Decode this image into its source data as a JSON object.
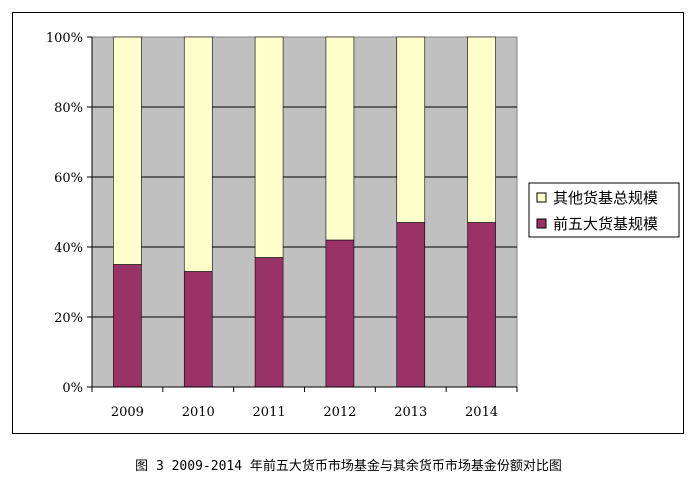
{
  "caption": "图 3  2009-2014 年前五大货币市场基金与其余货币市场基金份额对比图",
  "chart_data": {
    "type": "bar",
    "stacked": true,
    "percent_stacked": true,
    "categories": [
      "2009",
      "2010",
      "2011",
      "2012",
      "2013",
      "2014"
    ],
    "series": [
      {
        "name": "前五大货基规模",
        "color": "#993366",
        "values": [
          35,
          33,
          37,
          42,
          47,
          47
        ]
      },
      {
        "name": "其他货基总规模",
        "color": "#ffffcc",
        "values": [
          65,
          67,
          63,
          58,
          53,
          53
        ]
      }
    ],
    "yticks": [
      "0%",
      "20%",
      "40%",
      "60%",
      "80%",
      "100%"
    ],
    "ylim": [
      0,
      100
    ],
    "grid": true,
    "plot_background": "#c0c0c0",
    "legend": {
      "position": "right",
      "entries": [
        "其他货基总规模",
        "前五大货基规模"
      ]
    }
  }
}
